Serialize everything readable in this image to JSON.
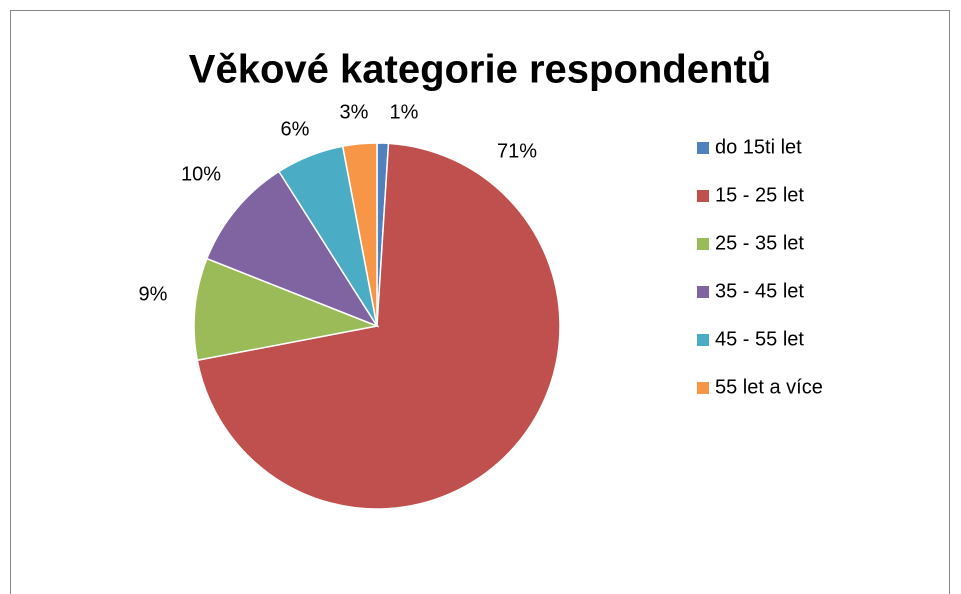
{
  "chart_data": {
    "type": "pie",
    "title": "Věkové kategorie respondentů",
    "categories": [
      "do 15ti let",
      "15 - 25 let",
      "25 - 35 let",
      "35 - 45 let",
      "45 - 55 let",
      "55 let a více"
    ],
    "values": [
      1,
      71,
      9,
      10,
      6,
      3
    ],
    "value_labels": [
      "1%",
      "71%",
      "9%",
      "10%",
      "6%",
      "3%"
    ],
    "colors": [
      "#4f81bd",
      "#c0504d",
      "#9bbb59",
      "#8064a2",
      "#4bacc6",
      "#f79646"
    ],
    "legend": "right"
  }
}
